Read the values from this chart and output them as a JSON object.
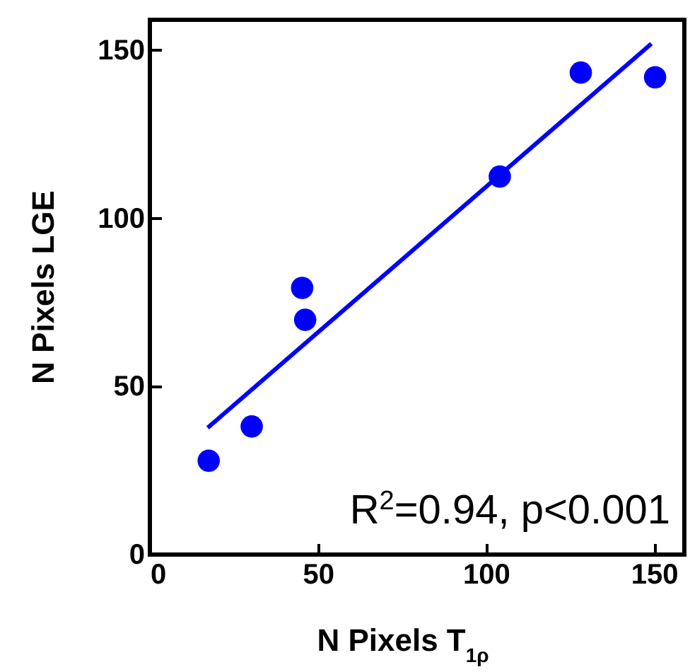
{
  "chart_data": {
    "type": "scatter",
    "xlabel": "N Pixels T$_{1ρ}$",
    "ylabel": "N Pixels LGE",
    "annotations": [
      "R$^{2}$=0.94, p<0.001"
    ],
    "xlim": [
      0,
      159
    ],
    "ylim": [
      0,
      159
    ],
    "xticks": [
      0,
      50,
      100,
      150
    ],
    "yticks": [
      0,
      50,
      100,
      150
    ],
    "marker": "circle",
    "series": [
      {
        "color": "#0000ff",
        "x": [
          17.5,
          30.3,
          45.3,
          46.2,
          104.1,
          128.2,
          150.3
        ],
        "values": [
          27.9,
          38.1,
          79.3,
          69.8,
          112.4,
          143.3,
          141.9
        ]
      },
      {
        "type": "line",
        "color": "#0000ff",
        "marker": "none",
        "x": [
          17.2,
          149.2
        ],
        "values": [
          37.7,
          151.9
        ]
      }
    ]
  }
}
